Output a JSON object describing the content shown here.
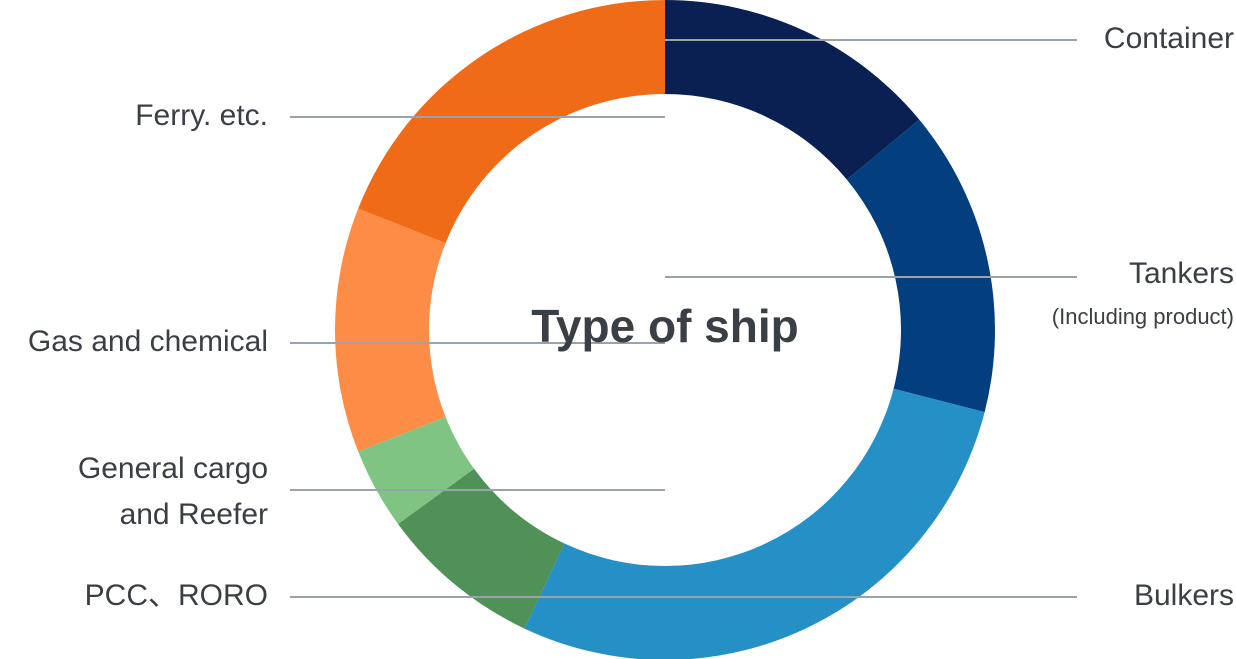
{
  "chart_data": {
    "type": "donut",
    "title": "Type of ship",
    "categories": [
      "Container",
      "Tankers",
      "Bulkers",
      "PCC、RORO",
      "General cargo\nand Reefer",
      "Gas and chemical",
      "Ferry. etc."
    ],
    "tankers_note": "(Including product)",
    "values": [
      14,
      15,
      28,
      8,
      4,
      12,
      19
    ],
    "colors": [
      "#0a1f52",
      "#033f7e",
      "#2490c6",
      "#4f9156",
      "#80c484",
      "#fd8c47",
      "#ef6b18"
    ]
  }
}
